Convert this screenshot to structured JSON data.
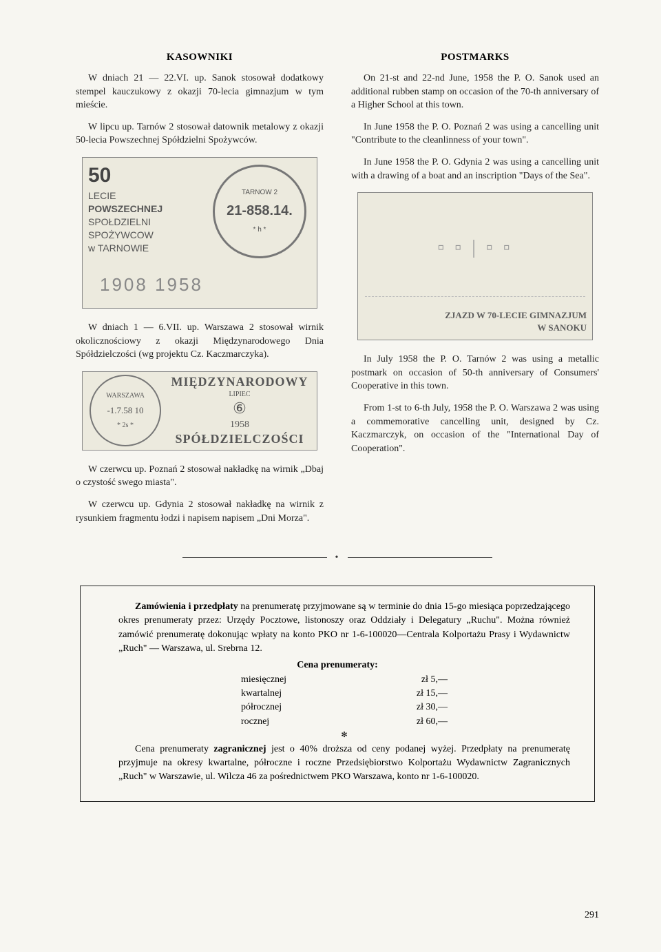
{
  "left": {
    "heading": "KASOWNIKI",
    "p1": "W dniach 21 — 22.VI. up. Sanok stosował dodatkowy stempel kauczukowy z okazji 70-lecia gimnazjum w tym mieście.",
    "p2": "W lipcu up. Tarnów 2 stosował datownik metalowy z okazji 50-lecia Powszechnej Spółdzielni Spożywców.",
    "stamp1": {
      "num": "50",
      "l1": "LECIE",
      "l2": "POWSZECHNEJ",
      "l3": "SPOŁDZIELNI",
      "l4": "SPOŻYWCOW",
      "l5": "w TARNOWIE",
      "circle_top": "TARNOW 2",
      "circle_mid": "21-858.14.",
      "circle_bot": "* h *",
      "years": "1908      1958"
    },
    "p3": "W dniach 1 — 6.VII. up. Warszawa 2 stosował wirnik okolicznościowy z okazji Międzynarodowego Dnia Spółdzielczości (wg projektu Cz. Kaczmarczyka).",
    "stamp2": {
      "arc": "WARSZAWA",
      "date": "-1.7.58  10",
      "bottom": "*   2s   *",
      "banner": "MIĘDZYNARODOWY",
      "month": "LIPIEC",
      "year": "1958",
      "coop": "SPÓŁDZIELCZOŚCI"
    },
    "p4": "W czerwcu up. Poznań 2 stosował nakładkę na wirnik „Dbaj o czystość swego miasta\".",
    "p5": "W czerwcu up. Gdynia 2 stosował nakładkę na wirnik z rysunkiem fragmentu łodzi i napisem napisem „Dni Morza\"."
  },
  "right": {
    "heading": "POSTMARKS",
    "p1": "On 21-st and 22-nd June, 1958 the P. O. Sanok used an additional rubben stamp on occasion of the 70-th anniversary of a Higher School at this town.",
    "p2": "In June 1958 the P. O. Poznań 2 was using a cancelling unit \"Contribute to the cleanlinness of your town\".",
    "p3": "In June 1958 the P. O. Gdynia 2 was using a cancelling unit with a drawing of a boat and an inscription \"Days of the Sea\".",
    "stamp3": {
      "sketch": "▫ ▫ | ▫ ▫",
      "line1": "ZJAZD W 70-LECIE GIMNAZJUM",
      "line2": "W SANOKU"
    },
    "p4": "In July 1958 the P. O. Tarnów 2 was using a metallic postmark on occasion of 50-th anniversary of Consumers' Cooperative in this town.",
    "p5": "From 1-st to 6-th July, 1958 the P. O. Warszawa 2 was using a commemorative cancelling unit, designed by Cz. Kaczmarczyk, on occasion of the \"International Day of Cooperation\"."
  },
  "subscription": {
    "p1a": "Zamówienia i przedpłaty",
    "p1b": " na prenumeratę przyjmowane są w terminie do dnia 15-go miesiąca poprzedzającego okres prenumeraty przez: Urzędy Pocztowe, listonoszy oraz Oddziały i Delegatury „Ruchu\". Można również zamówić prenumeratę dokonując wpłaty na konto PKO nr 1-6-100020—Centrala Kolportażu Prasy i Wydawnictw „Ruch\" — Warszawa, ul. Srebrna 12.",
    "priceHeading": "Cena prenumeraty:",
    "prices": [
      {
        "label": "miesięcznej",
        "amount": "zł   5,—"
      },
      {
        "label": "kwartalnej",
        "amount": "zł 15,—"
      },
      {
        "label": "półrocznej",
        "amount": "zł 30,—"
      },
      {
        "label": "rocznej",
        "amount": "zł 60,—"
      }
    ],
    "p2a": "Cena prenumeraty ",
    "p2b": "zagranicznej",
    "p2c": " jest o 40% droższa od ceny podanej wyżej. Przedpłaty na prenumeratę przyjmuje na okresy kwartalne, półroczne i roczne Przedsiębiorstwo Kolportażu Wydawnictw Zagranicznych „Ruch\" w Warszawie, ul. Wilcza 46 za pośrednictwem PKO Warszawa, konto nr 1-6-100020."
  },
  "pageNumber": "291"
}
